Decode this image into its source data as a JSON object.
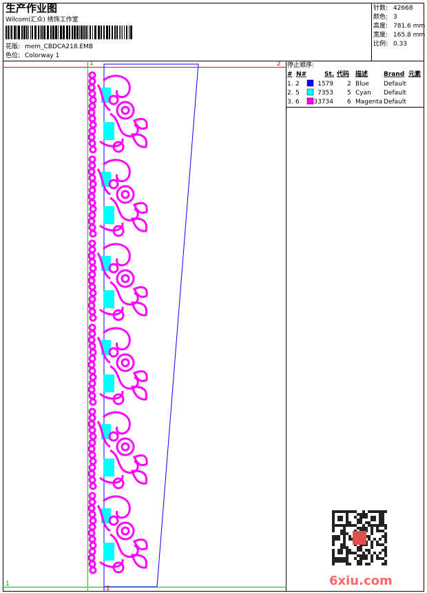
{
  "header": {
    "title": "生产作业图",
    "company": "Wilcom(汇众) 绣饰工作室",
    "design_label": "花版:",
    "design_file": "mem_CBDCA218.EMB",
    "colorway_label": "色位:",
    "colorway": "Colorway 1"
  },
  "stats": [
    {
      "label": "针数:",
      "value": "42668"
    },
    {
      "label": "颜色:",
      "value": "3"
    },
    {
      "label": "高度:",
      "value": "781.6 mm"
    },
    {
      "label": "宽度:",
      "value": "165.8 mm"
    },
    {
      "label": "比例:",
      "value": "0.33"
    }
  ],
  "stop_sequence": {
    "title": "停止顺序:",
    "columns": [
      "#",
      "N#",
      "St.",
      "代码",
      "描述",
      "Brand",
      "元素"
    ],
    "rows": [
      {
        "seq": "1.",
        "needle": "2",
        "swatch": "#0000ff",
        "stitches": "1579",
        "code": "2",
        "description": "Blue",
        "brand": "Default"
      },
      {
        "seq": "2.",
        "needle": "5",
        "swatch": "#00ffff",
        "stitches": "7353",
        "code": "5",
        "description": "Cyan",
        "brand": "Default"
      },
      {
        "seq": "3.",
        "needle": "6",
        "swatch": "#ff00ff",
        "stitches": "33734",
        "code": "6",
        "description": "Magenta",
        "brand": "Default"
      }
    ]
  },
  "markers": {
    "top_left": "1",
    "top_right": "2",
    "bottom_left": "1",
    "bottom_mid": "2"
  },
  "watermark": "6xiu.com"
}
